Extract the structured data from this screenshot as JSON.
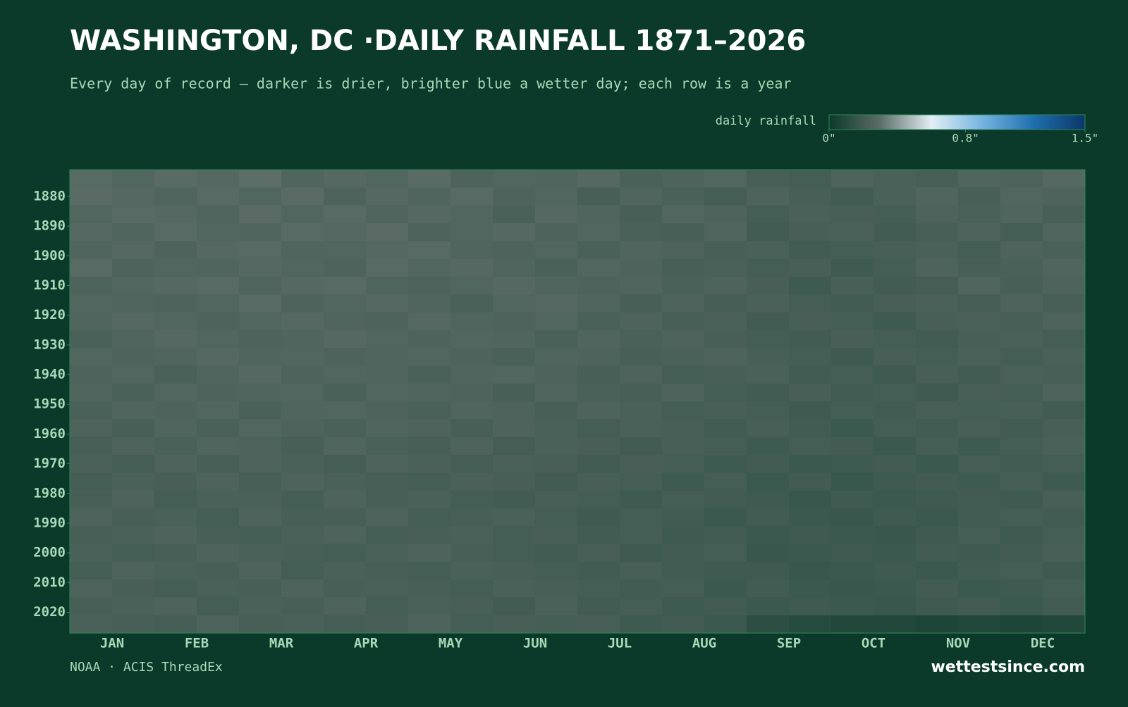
{
  "chart_data": {
    "type": "heatmap",
    "title": "WASHINGTON, DC ·DAILY RAINFALL 1871–2026",
    "subtitle": "Every day of record — darker is drier, brighter blue a wetter day; each row is a year",
    "colorbar": {
      "label": "daily rainfall",
      "lim": [
        0,
        1.5
      ],
      "ticks": [
        {
          "value": 0,
          "label": "0\""
        },
        {
          "value": 0.8,
          "label": "0.8\""
        },
        {
          "value": 1.5,
          "label": "1.5\""
        }
      ],
      "colors": [
        "#0b3a2a",
        "#5d6d68",
        "#e2eef4",
        "#74b3df",
        "#1f6fae",
        "#0b3768"
      ]
    },
    "categories": [
      "JAN",
      "FEB",
      "MAR",
      "APR",
      "MAY",
      "JUN",
      "JUL",
      "AUG",
      "SEP",
      "OCT",
      "NOV",
      "DEC"
    ],
    "ylim": [
      1871,
      2027
    ],
    "yticks": [
      1880,
      1890,
      1900,
      1910,
      1920,
      1930,
      1940,
      1950,
      1960,
      1970,
      1980,
      1990,
      2000,
      2010,
      2020
    ],
    "y": [
      1871,
      1877,
      1883,
      1889,
      1895,
      1901,
      1907,
      1913,
      1919,
      1925,
      1931,
      1937,
      1943,
      1949,
      1955,
      1961,
      1967,
      1973,
      1979,
      1985,
      1991,
      1997,
      2003,
      2009,
      2015,
      2021
    ],
    "values": [
      [
        0.28,
        0.26,
        0.29,
        0.27,
        0.3,
        0.25,
        0.27,
        0.26,
        0.29,
        0.24,
        0.26,
        0.25,
        0.27,
        0.23,
        0.24,
        0.26,
        0.22,
        0.21,
        0.24,
        0.23,
        0.22,
        0.25,
        0.24,
        0.27
      ],
      [
        0.29,
        0.27,
        0.25,
        0.28,
        0.26,
        0.29,
        0.24,
        0.27,
        0.25,
        0.28,
        0.24,
        0.26,
        0.22,
        0.25,
        0.23,
        0.21,
        0.24,
        0.22,
        0.2,
        0.23,
        0.25,
        0.22,
        0.26,
        0.24
      ],
      [
        0.26,
        0.28,
        0.27,
        0.25,
        0.29,
        0.26,
        0.28,
        0.25,
        0.27,
        0.26,
        0.23,
        0.27,
        0.25,
        0.22,
        0.26,
        0.24,
        0.21,
        0.23,
        0.22,
        0.21,
        0.24,
        0.23,
        0.25,
        0.22
      ],
      [
        0.27,
        0.25,
        0.28,
        0.26,
        0.25,
        0.28,
        0.27,
        0.29,
        0.24,
        0.26,
        0.27,
        0.24,
        0.26,
        0.23,
        0.22,
        0.25,
        0.2,
        0.22,
        0.23,
        0.2,
        0.22,
        0.24,
        0.21,
        0.25
      ],
      [
        0.25,
        0.27,
        0.24,
        0.27,
        0.28,
        0.25,
        0.26,
        0.27,
        0.28,
        0.25,
        0.24,
        0.26,
        0.23,
        0.25,
        0.24,
        0.22,
        0.23,
        0.2,
        0.21,
        0.22,
        0.23,
        0.21,
        0.24,
        0.23
      ],
      [
        0.28,
        0.24,
        0.26,
        0.25,
        0.27,
        0.26,
        0.24,
        0.28,
        0.26,
        0.27,
        0.25,
        0.23,
        0.26,
        0.24,
        0.22,
        0.23,
        0.21,
        0.22,
        0.19,
        0.21,
        0.24,
        0.22,
        0.23,
        0.25
      ],
      [
        0.24,
        0.26,
        0.27,
        0.28,
        0.25,
        0.27,
        0.28,
        0.25,
        0.24,
        0.26,
        0.27,
        0.25,
        0.24,
        0.25,
        0.23,
        0.24,
        0.22,
        0.19,
        0.22,
        0.2,
        0.21,
        0.25,
        0.22,
        0.24
      ],
      [
        0.26,
        0.25,
        0.24,
        0.26,
        0.28,
        0.24,
        0.26,
        0.27,
        0.25,
        0.23,
        0.26,
        0.27,
        0.25,
        0.22,
        0.24,
        0.21,
        0.23,
        0.21,
        0.2,
        0.22,
        0.23,
        0.21,
        0.24,
        0.22
      ],
      [
        0.25,
        0.27,
        0.26,
        0.24,
        0.26,
        0.27,
        0.25,
        0.24,
        0.27,
        0.25,
        0.24,
        0.26,
        0.23,
        0.24,
        0.22,
        0.23,
        0.2,
        0.22,
        0.21,
        0.19,
        0.22,
        0.23,
        0.22,
        0.24
      ],
      [
        0.23,
        0.25,
        0.27,
        0.26,
        0.24,
        0.25,
        0.27,
        0.26,
        0.24,
        0.26,
        0.25,
        0.23,
        0.25,
        0.23,
        0.24,
        0.22,
        0.21,
        0.2,
        0.22,
        0.21,
        0.2,
        0.22,
        0.23,
        0.21
      ],
      [
        0.26,
        0.24,
        0.25,
        0.27,
        0.25,
        0.26,
        0.24,
        0.25,
        0.26,
        0.24,
        0.23,
        0.25,
        0.24,
        0.22,
        0.23,
        0.24,
        0.22,
        0.21,
        0.19,
        0.22,
        0.21,
        0.23,
        0.21,
        0.23
      ],
      [
        0.24,
        0.26,
        0.23,
        0.25,
        0.27,
        0.24,
        0.26,
        0.25,
        0.23,
        0.25,
        0.26,
        0.24,
        0.22,
        0.24,
        0.21,
        0.22,
        0.23,
        0.2,
        0.21,
        0.19,
        0.22,
        0.2,
        0.23,
        0.22
      ],
      [
        0.25,
        0.23,
        0.26,
        0.24,
        0.25,
        0.26,
        0.23,
        0.26,
        0.25,
        0.24,
        0.22,
        0.25,
        0.23,
        0.22,
        0.24,
        0.21,
        0.2,
        0.22,
        0.2,
        0.21,
        0.19,
        0.22,
        0.21,
        0.24
      ],
      [
        0.23,
        0.25,
        0.24,
        0.26,
        0.23,
        0.25,
        0.26,
        0.24,
        0.23,
        0.25,
        0.24,
        0.22,
        0.24,
        0.23,
        0.21,
        0.22,
        0.21,
        0.19,
        0.21,
        0.2,
        0.22,
        0.21,
        0.22,
        0.2
      ],
      [
        0.24,
        0.22,
        0.25,
        0.23,
        0.26,
        0.24,
        0.23,
        0.25,
        0.24,
        0.22,
        0.24,
        0.23,
        0.21,
        0.23,
        0.22,
        0.2,
        0.22,
        0.2,
        0.18,
        0.21,
        0.2,
        0.22,
        0.2,
        0.22
      ],
      [
        0.22,
        0.24,
        0.23,
        0.25,
        0.24,
        0.22,
        0.25,
        0.23,
        0.22,
        0.24,
        0.21,
        0.23,
        0.22,
        0.2,
        0.22,
        0.21,
        0.19,
        0.21,
        0.2,
        0.18,
        0.21,
        0.19,
        0.21,
        0.23
      ],
      [
        0.23,
        0.21,
        0.24,
        0.22,
        0.24,
        0.23,
        0.21,
        0.24,
        0.23,
        0.21,
        0.23,
        0.22,
        0.2,
        0.22,
        0.21,
        0.19,
        0.2,
        0.18,
        0.19,
        0.2,
        0.18,
        0.21,
        0.2,
        0.21
      ],
      [
        0.21,
        0.23,
        0.22,
        0.24,
        0.22,
        0.24,
        0.23,
        0.22,
        0.21,
        0.23,
        0.22,
        0.2,
        0.22,
        0.21,
        0.19,
        0.21,
        0.18,
        0.2,
        0.17,
        0.19,
        0.2,
        0.19,
        0.21,
        0.19
      ],
      [
        0.22,
        0.24,
        0.21,
        0.23,
        0.23,
        0.21,
        0.24,
        0.22,
        0.23,
        0.21,
        0.2,
        0.22,
        0.21,
        0.19,
        0.21,
        0.2,
        0.19,
        0.17,
        0.19,
        0.18,
        0.19,
        0.2,
        0.19,
        0.22
      ],
      [
        0.24,
        0.22,
        0.23,
        0.21,
        0.24,
        0.22,
        0.22,
        0.24,
        0.21,
        0.22,
        0.23,
        0.21,
        0.19,
        0.21,
        0.2,
        0.18,
        0.2,
        0.18,
        0.17,
        0.19,
        0.18,
        0.2,
        0.21,
        0.2
      ],
      [
        0.22,
        0.23,
        0.24,
        0.22,
        0.21,
        0.23,
        0.24,
        0.21,
        0.22,
        0.23,
        0.21,
        0.22,
        0.2,
        0.21,
        0.19,
        0.2,
        0.18,
        0.19,
        0.18,
        0.17,
        0.19,
        0.21,
        0.19,
        0.21
      ],
      [
        0.23,
        0.21,
        0.22,
        0.24,
        0.23,
        0.22,
        0.21,
        0.23,
        0.24,
        0.22,
        0.21,
        0.2,
        0.22,
        0.19,
        0.2,
        0.21,
        0.17,
        0.18,
        0.19,
        0.18,
        0.2,
        0.19,
        0.2,
        0.22
      ],
      [
        0.21,
        0.24,
        0.23,
        0.22,
        0.24,
        0.21,
        0.23,
        0.22,
        0.21,
        0.23,
        0.22,
        0.21,
        0.2,
        0.22,
        0.2,
        0.19,
        0.19,
        0.17,
        0.18,
        0.19,
        0.18,
        0.2,
        0.21,
        0.19
      ],
      [
        0.24,
        0.22,
        0.21,
        0.23,
        0.22,
        0.24,
        0.22,
        0.23,
        0.22,
        0.21,
        0.23,
        0.22,
        0.21,
        0.2,
        0.21,
        0.18,
        0.2,
        0.18,
        0.17,
        0.18,
        0.2,
        0.18,
        0.19,
        0.21
      ],
      [
        0.22,
        0.23,
        0.24,
        0.21,
        0.23,
        0.22,
        0.24,
        0.21,
        0.23,
        0.22,
        0.2,
        0.23,
        0.2,
        0.21,
        0.19,
        0.2,
        0.18,
        0.19,
        0.18,
        0.17,
        0.19,
        0.2,
        0.18,
        0.2
      ],
      [
        0.23,
        0.22,
        0.21,
        0.24,
        0.22,
        0.23,
        0.21,
        0.22,
        0.24,
        0.21,
        0.22,
        0.21,
        0.22,
        0.19,
        0.2,
        0.18,
        0.12,
        0.1,
        0.08,
        0.08,
        0.07,
        0.08,
        0.07,
        0.08
      ]
    ],
    "source": "NOAA · ACIS ThreadEx",
    "brand": "wettestsince.com"
  }
}
